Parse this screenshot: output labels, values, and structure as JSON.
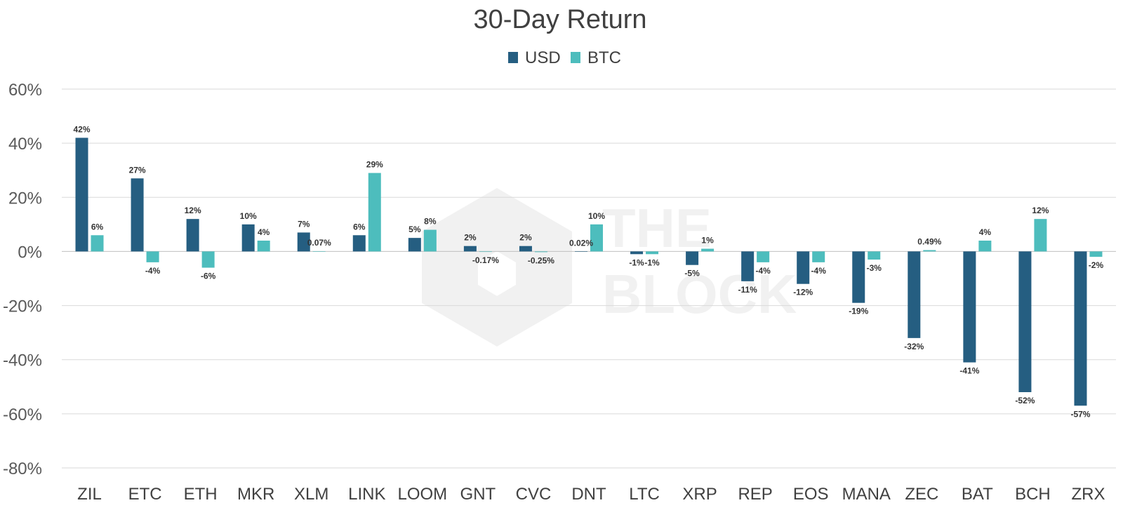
{
  "chart_data": {
    "type": "bar",
    "title": "30-Day Return",
    "xlabel": "",
    "ylabel": "",
    "legend_position": "top-center",
    "grid": true,
    "ylim": [
      -80,
      60
    ],
    "yticks": [
      60,
      40,
      20,
      0,
      -20,
      -40,
      -60,
      -80
    ],
    "ytick_labels": [
      "60%",
      "40%",
      "20%",
      "0%",
      "-20%",
      "-40%",
      "-60%",
      "-80%"
    ],
    "categories": [
      "ZIL",
      "ETC",
      "ETH",
      "MKR",
      "XLM",
      "LINK",
      "LOOM",
      "GNT",
      "CVC",
      "DNT",
      "LTC",
      "XRP",
      "REP",
      "EOS",
      "MANA",
      "ZEC",
      "BAT",
      "BCH",
      "ZRX"
    ],
    "series": [
      {
        "name": "USD",
        "color": "#255E81",
        "values": [
          42,
          27,
          12,
          10,
          7,
          6,
          5,
          2,
          2,
          0.02,
          -1,
          -5,
          -11,
          -12,
          -19,
          -32,
          -41,
          -52,
          -57
        ],
        "labels": [
          "42%",
          "27%",
          "12%",
          "10%",
          "7%",
          "6%",
          "5%",
          "2%",
          "2%",
          "0.02%",
          "-1%",
          "-5%",
          "-11%",
          "-12%",
          "-19%",
          "-32%",
          "-41%",
          "-52%",
          "-57%"
        ]
      },
      {
        "name": "BTC",
        "color": "#4DBDBD",
        "values": [
          6,
          -4,
          -6,
          4,
          0.07,
          29,
          8,
          -0.17,
          -0.25,
          10,
          -1,
          1,
          -4,
          -4,
          -3,
          0.49,
          4,
          12,
          -2
        ],
        "labels": [
          "6%",
          "-4%",
          "-6%",
          "4%",
          "0.07%",
          "29%",
          "8%",
          "-0.17%",
          "-0.25%",
          "10%",
          "-1%",
          "1%",
          "-4%",
          "-4%",
          "-3%",
          "0.49%",
          "4%",
          "12%",
          "-2%"
        ]
      }
    ]
  },
  "watermark": {
    "line1": "THE",
    "line2": "BLOCK"
  }
}
